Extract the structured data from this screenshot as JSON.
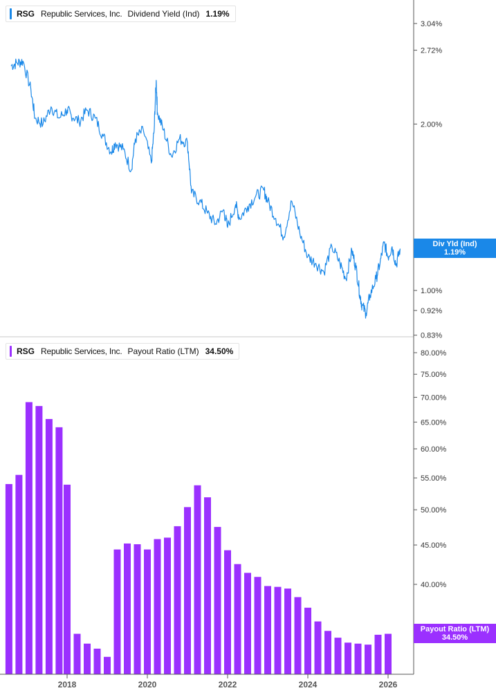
{
  "top_panel": {
    "legend": {
      "ticker": "RSG",
      "company": "Republic Services, Inc.",
      "metric": "Dividend Yield (Ind)",
      "value": "1.19%"
    },
    "tag": {
      "label": "Div Yld (Ind)",
      "value": "1.19%"
    },
    "color": "#1a88e8"
  },
  "bottom_panel": {
    "legend": {
      "ticker": "RSG",
      "company": "Republic Services, Inc.",
      "metric": "Payout Ratio (LTM)",
      "value": "34.50%"
    },
    "tag": {
      "label": "Payout Ratio (LTM)",
      "value": "34.50%"
    },
    "color": "#9b30ff"
  },
  "chart_data": [
    {
      "type": "line",
      "title": "Dividend Yield (Ind)",
      "scale": "log",
      "y_tick_labels": [
        "3.04%",
        "2.72%",
        "2.00%",
        "1.00%",
        "0.92%",
        "0.83%"
      ],
      "y_ticks": [
        3.04,
        2.72,
        2.0,
        1.0,
        0.92,
        0.83
      ],
      "ylim": [
        0.83,
        3.4
      ],
      "x_tick_labels": [
        "2018",
        "2020",
        "2022",
        "2024",
        "2026"
      ],
      "series": [
        {
          "name": "Dividend Yield (Ind)",
          "x": [
            2016.6,
            2016.75,
            2016.9,
            2017.1,
            2017.2,
            2017.4,
            2017.6,
            2017.8,
            2018.0,
            2018.1,
            2018.3,
            2018.5,
            2018.7,
            2018.9,
            2019.1,
            2019.2,
            2019.4,
            2019.6,
            2019.7,
            2019.9,
            2020.1,
            2020.17,
            2020.22,
            2020.25,
            2020.4,
            2020.6,
            2020.8,
            2021.0,
            2021.1,
            2021.3,
            2021.5,
            2021.7,
            2021.9,
            2022.0,
            2022.2,
            2022.3,
            2022.5,
            2022.7,
            2022.9,
            2023.0,
            2023.2,
            2023.4,
            2023.6,
            2023.8,
            2024.0,
            2024.2,
            2024.4,
            2024.6,
            2024.8,
            2024.95,
            2025.1,
            2025.2,
            2025.3,
            2025.35,
            2025.45,
            2025.55,
            2025.7,
            2025.8,
            2025.9,
            2026.0,
            2026.1,
            2026.2,
            2026.3
          ],
          "values": [
            2.55,
            2.58,
            2.6,
            2.3,
            2.05,
            2.0,
            2.15,
            2.05,
            2.12,
            2.08,
            2.02,
            2.12,
            2.05,
            1.9,
            1.78,
            1.85,
            1.8,
            1.65,
            1.88,
            1.95,
            1.7,
            1.95,
            2.4,
            2.1,
            1.95,
            1.75,
            1.88,
            1.85,
            1.5,
            1.45,
            1.38,
            1.32,
            1.4,
            1.3,
            1.43,
            1.35,
            1.42,
            1.48,
            1.52,
            1.45,
            1.35,
            1.25,
            1.45,
            1.27,
            1.15,
            1.12,
            1.08,
            1.2,
            1.12,
            1.05,
            1.18,
            1.1,
            0.98,
            0.94,
            0.91,
            0.98,
            1.05,
            1.12,
            1.22,
            1.15,
            1.2,
            1.11,
            1.19
          ]
        }
      ]
    },
    {
      "type": "bar",
      "title": "Payout Ratio (LTM)",
      "y_tick_labels": [
        "80.00%",
        "75.00%",
        "70.00%",
        "65.00%",
        "60.00%",
        "55.00%",
        "50.00%",
        "45.00%",
        "40.00%"
      ],
      "y_ticks": [
        80,
        75,
        70,
        65,
        60,
        55,
        50,
        45,
        40
      ],
      "x_tick_labels": [
        "2018",
        "2020",
        "2022",
        "2024",
        "2026"
      ],
      "series": [
        {
          "name": "Payout Ratio (LTM)",
          "x": [
            2016.55,
            2016.8,
            2017.05,
            2017.3,
            2017.55,
            2017.8,
            2018.0,
            2018.25,
            2018.5,
            2018.75,
            2019.0,
            2019.25,
            2019.5,
            2019.75,
            2020.0,
            2020.25,
            2020.5,
            2020.75,
            2021.0,
            2021.25,
            2021.5,
            2021.75,
            2022.0,
            2022.25,
            2022.5,
            2022.75,
            2023.0,
            2023.25,
            2023.5,
            2023.75,
            2024.0,
            2024.25,
            2024.5,
            2024.75,
            2025.0,
            2025.25,
            2025.5,
            2025.75,
            2026.0
          ],
          "values": [
            54.0,
            55.5,
            69.0,
            68.2,
            65.6,
            64.0,
            53.9,
            34.5,
            33.5,
            33.0,
            32.2,
            44.4,
            45.2,
            45.1,
            44.4,
            45.8,
            46.0,
            47.6,
            50.4,
            53.8,
            51.9,
            47.5,
            44.3,
            42.5,
            41.4,
            40.9,
            39.8,
            39.7,
            39.5,
            38.5,
            37.3,
            35.8,
            34.8,
            34.1,
            33.6,
            33.5,
            33.4,
            34.4,
            34.5
          ]
        }
      ]
    }
  ]
}
